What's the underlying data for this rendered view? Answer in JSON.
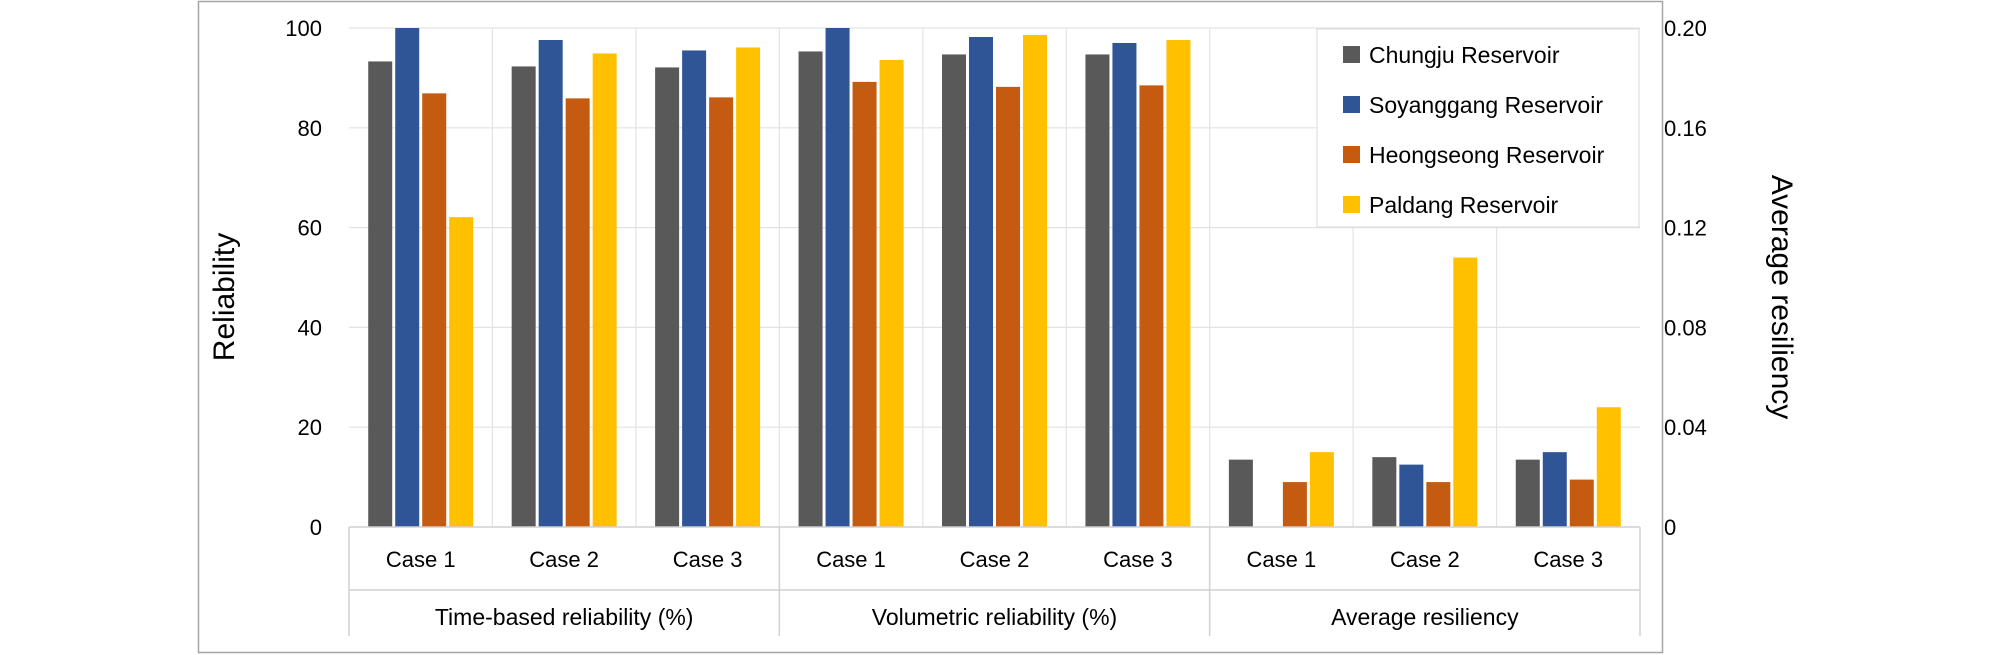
{
  "chart_data": {
    "type": "bar",
    "y_axis_left": {
      "label": "Reliability",
      "range": [
        0,
        100
      ],
      "ticks": [
        0,
        20,
        40,
        60,
        80,
        100
      ]
    },
    "y_axis_right": {
      "label": "Average resiliency",
      "range": [
        0,
        0.2
      ],
      "ticks": [
        "0",
        "0.04",
        "0.08",
        "0.12",
        "0.16",
        "0.20"
      ]
    },
    "legend": {
      "placement": "top-right",
      "entries": [
        "Chungju Reservoir",
        "Soyanggang Reservoir",
        "Heongseong Reservoir",
        "Paldang Reservoir"
      ]
    },
    "colors": [
      "#595959",
      "#2f5597",
      "#c55a11",
      "#ffc000"
    ],
    "groups": [
      {
        "label": "Time-based reliability (%)",
        "axis": "left",
        "categories": [
          "Case 1",
          "Case 2",
          "Case 3"
        ],
        "series": [
          {
            "name": "Chungju Reservoir",
            "values": [
              93.3,
              92.3,
              92.1
            ]
          },
          {
            "name": "Soyanggang Reservoir",
            "values": [
              100,
              97.6,
              95.5
            ]
          },
          {
            "name": "Heongseong Reservoir",
            "values": [
              86.9,
              85.9,
              86.1
            ]
          },
          {
            "name": "Paldang Reservoir",
            "values": [
              62.1,
              94.9,
              96.1
            ]
          }
        ]
      },
      {
        "label": "Volumetric reliability (%)",
        "axis": "left",
        "categories": [
          "Case 1",
          "Case 2",
          "Case 3"
        ],
        "series": [
          {
            "name": "Chungju Reservoir",
            "values": [
              95.3,
              94.7,
              94.7
            ]
          },
          {
            "name": "Soyanggang Reservoir",
            "values": [
              100,
              98.2,
              97.0
            ]
          },
          {
            "name": "Heongseong Reservoir",
            "values": [
              89.2,
              88.2,
              88.5
            ]
          },
          {
            "name": "Paldang Reservoir",
            "values": [
              93.6,
              98.6,
              97.6
            ]
          }
        ]
      },
      {
        "label": "Average resiliency",
        "axis": "right",
        "categories": [
          "Case 1",
          "Case 2",
          "Case 3"
        ],
        "series": [
          {
            "name": "Chungju Reservoir",
            "values": [
              0.027,
              0.028,
              0.027
            ]
          },
          {
            "name": "Soyanggang Reservoir",
            "values": [
              0.0,
              0.025,
              0.03
            ]
          },
          {
            "name": "Heongseong Reservoir",
            "values": [
              0.018,
              0.018,
              0.019
            ]
          },
          {
            "name": "Paldang Reservoir",
            "values": [
              0.03,
              0.108,
              0.048
            ]
          }
        ]
      }
    ]
  }
}
